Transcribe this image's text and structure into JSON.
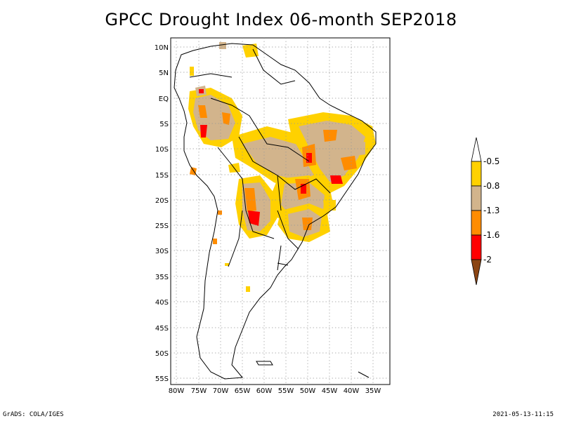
{
  "title": "GPCC Drought Index 06-month SEP2018",
  "footer": {
    "left": "GrADS: COLA/IGES",
    "right": "2021-05-13-11:15"
  },
  "map": {
    "region": "South America",
    "projection": "lat-lon",
    "grid": true,
    "lat_labels": [
      "10N",
      "5N",
      "EQ",
      "5S",
      "10S",
      "15S",
      "20S",
      "25S",
      "30S",
      "35S",
      "40S",
      "45S",
      "50S",
      "55S"
    ],
    "lon_labels": [
      "80W",
      "75W",
      "70W",
      "65W",
      "60W",
      "55W",
      "50W",
      "45W",
      "40W",
      "35W"
    ],
    "lon_range": [
      -81,
      -33
    ],
    "lat_range": [
      -56,
      12
    ]
  },
  "legend": {
    "labels": [
      "-0.5",
      "-0.8",
      "-1.3",
      "-1.6",
      "-2"
    ],
    "colors": [
      "#ffffff",
      "#ffd100",
      "#d2b48c",
      "#ff8c00",
      "#ff0000",
      "#8b4513"
    ]
  }
}
